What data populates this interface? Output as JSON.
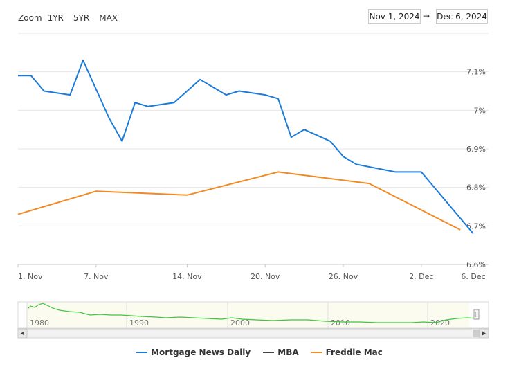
{
  "toolbar": {
    "zoom_label": "Zoom",
    "buttons": [
      "1YR",
      "5YR",
      "MAX"
    ]
  },
  "range": {
    "from": "Nov 1, 2024",
    "arrow": "→",
    "to": "Dec 6, 2024"
  },
  "colors": {
    "mnd": "#1c7ad8",
    "mba": "#444444",
    "freddie": "#f08a24",
    "navigator": "#3ec63e"
  },
  "chart_data": {
    "type": "line",
    "x_unit": "date",
    "xlim": [
      "2024-11-01",
      "2024-12-06"
    ],
    "ylim": [
      6.6,
      7.2
    ],
    "y_ticks": [
      {
        "value": 6.6,
        "label": "6.6%"
      },
      {
        "value": 6.7,
        "label": "6.7%"
      },
      {
        "value": 6.8,
        "label": "6.8%"
      },
      {
        "value": 6.9,
        "label": "6.9%"
      },
      {
        "value": 7.0,
        "label": "7%"
      },
      {
        "value": 7.1,
        "label": "7.1%"
      }
    ],
    "x_ticks": [
      {
        "date": "2024-11-01",
        "label": "1. Nov"
      },
      {
        "date": "2024-11-07",
        "label": "7. Nov"
      },
      {
        "date": "2024-11-14",
        "label": "14. Nov"
      },
      {
        "date": "2024-11-20",
        "label": "20. Nov"
      },
      {
        "date": "2024-11-26",
        "label": "26. Nov"
      },
      {
        "date": "2024-12-02",
        "label": "2. Dec"
      },
      {
        "date": "2024-12-06",
        "label": "6. Dec"
      }
    ],
    "grid": true,
    "legend_position": "bottom",
    "series": [
      {
        "name": "Mortgage News Daily",
        "color_key": "mnd",
        "points": [
          [
            "2024-11-01",
            7.09
          ],
          [
            "2024-11-02",
            7.09
          ],
          [
            "2024-11-03",
            7.05
          ],
          [
            "2024-11-05",
            7.04
          ],
          [
            "2024-11-06",
            7.13
          ],
          [
            "2024-11-08",
            6.98
          ],
          [
            "2024-11-09",
            6.92
          ],
          [
            "2024-11-10",
            7.02
          ],
          [
            "2024-11-11",
            7.01
          ],
          [
            "2024-11-13",
            7.02
          ],
          [
            "2024-11-15",
            7.08
          ],
          [
            "2024-11-17",
            7.04
          ],
          [
            "2024-11-18",
            7.05
          ],
          [
            "2024-11-20",
            7.04
          ],
          [
            "2024-11-21",
            7.03
          ],
          [
            "2024-11-22",
            6.93
          ],
          [
            "2024-11-23",
            6.95
          ],
          [
            "2024-11-25",
            6.92
          ],
          [
            "2024-11-26",
            6.88
          ],
          [
            "2024-11-27",
            6.86
          ],
          [
            "2024-11-30",
            6.84
          ],
          [
            "2024-12-02",
            6.84
          ],
          [
            "2024-12-06",
            6.68
          ]
        ]
      },
      {
        "name": "MBA",
        "color_key": "mba",
        "points": []
      },
      {
        "name": "Freddie Mac",
        "color_key": "freddie",
        "points": [
          [
            "2024-11-01",
            6.73
          ],
          [
            "2024-11-07",
            6.79
          ],
          [
            "2024-11-14",
            6.78
          ],
          [
            "2024-11-21",
            6.84
          ],
          [
            "2024-11-28",
            6.81
          ],
          [
            "2024-12-05",
            6.69
          ]
        ]
      }
    ],
    "navigator": {
      "labels": [
        "1980",
        "1990",
        "2000",
        "2010",
        "2020"
      ]
    }
  }
}
